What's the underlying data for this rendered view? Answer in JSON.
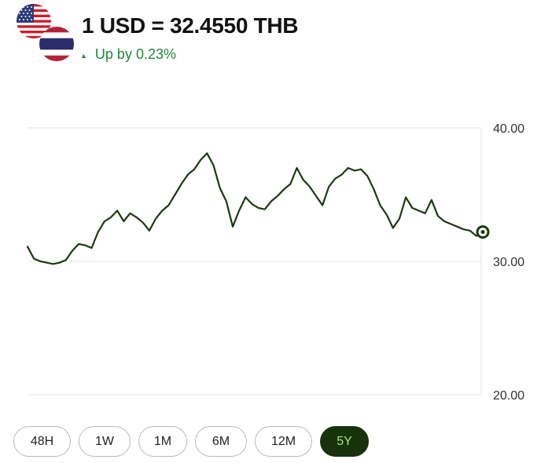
{
  "header": {
    "rate_text": "1 USD = 32.4550 THB",
    "change_text": "Up by 0.23%",
    "change_icon": "triangle-up-icon",
    "change_color": "#1f8a3a",
    "base_flag": "us-flag-icon",
    "quote_flag": "thailand-flag-icon"
  },
  "ranges": [
    {
      "label": "48H",
      "active": false
    },
    {
      "label": "1W",
      "active": false
    },
    {
      "label": "1M",
      "active": false
    },
    {
      "label": "6M",
      "active": false
    },
    {
      "label": "12M",
      "active": false
    },
    {
      "label": "5Y",
      "active": true
    }
  ],
  "colors": {
    "line": "#1a3a0e",
    "active_bg": "#17330c",
    "active_text": "#a5e37e",
    "grid": "#e3e3e3"
  },
  "chart_data": {
    "type": "line",
    "title": "",
    "xlabel": "",
    "ylabel": "",
    "ylim": [
      20,
      40
    ],
    "yticks": [
      "40.00",
      "30.00",
      "20.00"
    ],
    "grid": true,
    "y_axis_side": "right",
    "series": [
      {
        "values": [
          31.1,
          30.2,
          30.0,
          29.9,
          29.8,
          29.9,
          30.1,
          30.8,
          31.3,
          31.2,
          31.0,
          32.2,
          33.0,
          33.3,
          33.8,
          33.0,
          33.6,
          33.3,
          32.9,
          32.3,
          33.2,
          33.8,
          34.2,
          35.0,
          35.8,
          36.5,
          36.9,
          37.6,
          38.1,
          37.2,
          35.5,
          34.5,
          32.6,
          33.8,
          34.8,
          34.3,
          34.0,
          33.9,
          34.5,
          34.9,
          35.4,
          35.8,
          37.0,
          36.1,
          35.6,
          34.9,
          34.2,
          35.6,
          36.2,
          36.5,
          37.0,
          36.8,
          36.9,
          36.4,
          35.4,
          34.2,
          33.5,
          32.5,
          33.2,
          34.8,
          34.0,
          33.8,
          33.6,
          34.6,
          33.4,
          33.0,
          32.8,
          32.6,
          32.4,
          32.3,
          31.9,
          32.2
        ]
      }
    ]
  }
}
